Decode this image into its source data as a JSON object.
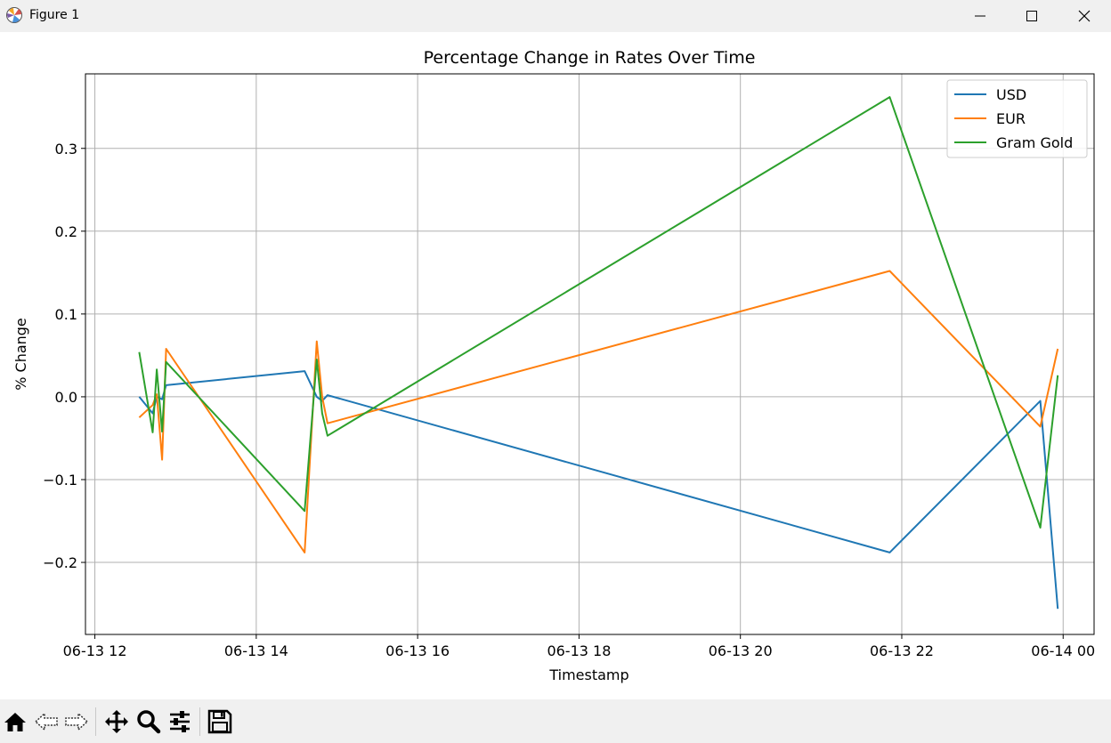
{
  "window": {
    "title": "Figure 1",
    "icon": "matplotlib-icon",
    "controls": [
      "minimize-icon",
      "maximize-icon",
      "close-icon"
    ]
  },
  "toolbar": {
    "buttons": [
      "home-icon",
      "back-icon",
      "forward-icon",
      "pan-icon",
      "zoom-icon",
      "configure-subplots-icon",
      "save-icon"
    ]
  },
  "chart_data": {
    "type": "line",
    "title": "Percentage Change in Rates Over Time",
    "xlabel": "Timestamp",
    "ylabel": "% Change",
    "grid": true,
    "legend_position": "top-right",
    "xlim": [
      "2024-06-13 11:53",
      "2024-06-14 00:23"
    ],
    "ylim": [
      -0.287,
      0.39
    ],
    "x_ticks": [
      {
        "value": "2024-06-13 12:00",
        "label": "06-13 12"
      },
      {
        "value": "2024-06-13 14:00",
        "label": "06-13 14"
      },
      {
        "value": "2024-06-13 16:00",
        "label": "06-13 16"
      },
      {
        "value": "2024-06-13 18:00",
        "label": "06-13 18"
      },
      {
        "value": "2024-06-13 20:00",
        "label": "06-13 20"
      },
      {
        "value": "2024-06-13 22:00",
        "label": "06-13 22"
      },
      {
        "value": "2024-06-14 00:00",
        "label": "06-14 00"
      }
    ],
    "y_ticks": [
      {
        "value": 0.3,
        "label": "0.3"
      },
      {
        "value": 0.2,
        "label": "0.2"
      },
      {
        "value": 0.1,
        "label": "0.1"
      },
      {
        "value": 0.0,
        "label": "0.0"
      },
      {
        "value": -0.1,
        "label": "−0.1"
      },
      {
        "value": -0.2,
        "label": "−0.2"
      }
    ],
    "x": [
      "2024-06-13 12:33",
      "2024-06-13 12:43",
      "2024-06-13 12:46",
      "2024-06-13 12:50",
      "2024-06-13 12:53",
      "2024-06-13 14:36",
      "2024-06-13 14:45",
      "2024-06-13 14:49",
      "2024-06-13 14:53",
      "2024-06-13 21:51",
      "2024-06-13 23:43",
      "2024-06-13 23:56"
    ],
    "series": [
      {
        "name": "USD",
        "color": "#1f77b4",
        "values": [
          0.0,
          -0.02,
          0.0,
          -0.003,
          0.014,
          0.031,
          0.0,
          -0.005,
          0.002,
          -0.188,
          -0.005,
          -0.256
        ]
      },
      {
        "name": "EUR",
        "color": "#ff7f0e",
        "values": [
          -0.025,
          -0.01,
          0.003,
          -0.076,
          0.058,
          -0.188,
          0.067,
          0.0,
          -0.032,
          0.152,
          -0.036,
          0.058
        ]
      },
      {
        "name": "Gram Gold",
        "color": "#2ca02c",
        "values": [
          0.054,
          -0.043,
          0.033,
          -0.042,
          0.042,
          -0.138,
          0.045,
          -0.02,
          -0.047,
          0.362,
          -0.158,
          0.026
        ]
      }
    ]
  }
}
